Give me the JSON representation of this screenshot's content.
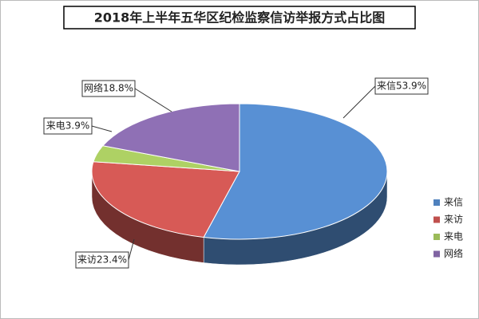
{
  "chart_data": {
    "type": "pie",
    "title": "2018年上半年五华区纪检监察信访举报方式占比图",
    "categories": [
      "来信",
      "来访",
      "来电",
      "网络"
    ],
    "values": [
      53.9,
      23.4,
      3.9,
      18.8
    ],
    "value_labels": [
      "来信53.9%",
      "来访23.4%",
      "来电3.9%",
      "网络18.8%"
    ],
    "colors": [
      "#4f81bd",
      "#c0504d",
      "#9bbb59",
      "#8064a2"
    ],
    "legend": "right"
  }
}
